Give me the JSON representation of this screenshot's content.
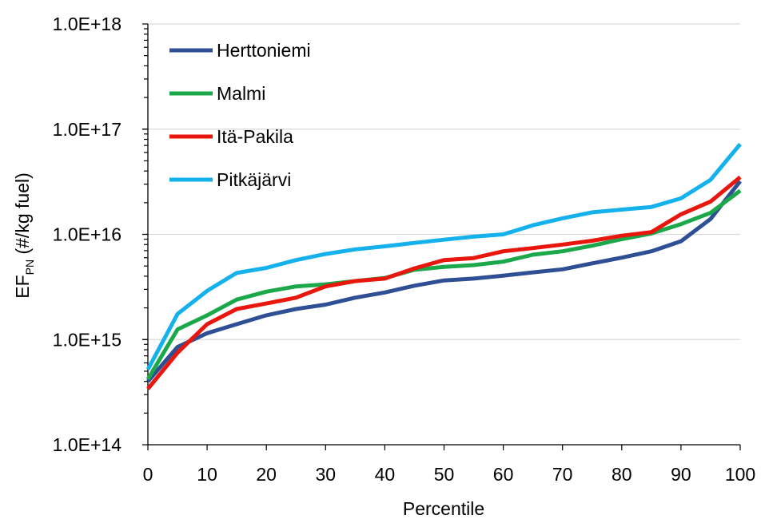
{
  "chart_data": {
    "type": "line",
    "xlabel": "Percentile",
    "ylabel_main": "EF",
    "ylabel_sub": "PN",
    "ylabel_rest": " (#/kg fuel)",
    "yscale": "log",
    "ylim": [
      100000000000000.0,
      1e+18
    ],
    "xlim": [
      0,
      100
    ],
    "y_ticks": [
      100000000000000.0,
      1000000000000000.0,
      1e+16,
      1e+17,
      1e+18
    ],
    "y_tick_labels": [
      "1.0E+14",
      "1.0E+15",
      "1.0E+16",
      "1.0E+17",
      "1.0E+18"
    ],
    "x_ticks": [
      0,
      10,
      20,
      30,
      40,
      50,
      60,
      70,
      80,
      90,
      100
    ],
    "x_tick_labels": [
      "0",
      "10",
      "20",
      "30",
      "40",
      "50",
      "60",
      "70",
      "80",
      "90",
      "100"
    ],
    "grid": "horizontal major",
    "legend_position": "top-left",
    "x": [
      0,
      5,
      10,
      15,
      20,
      25,
      30,
      35,
      40,
      45,
      50,
      55,
      60,
      65,
      70,
      75,
      80,
      85,
      90,
      95,
      100
    ],
    "series": [
      {
        "name": "Herttoniemi",
        "color": "#2F4F94",
        "values": [
          400000000000000.0,
          850000000000000.0,
          1150000000000000.0,
          1400000000000000.0,
          1700000000000000.0,
          1950000000000000.0,
          2150000000000000.0,
          2500000000000000.0,
          2800000000000000.0,
          3250000000000000.0,
          3650000000000000.0,
          3800000000000000.0,
          4050000000000000.0,
          4350000000000000.0,
          4650000000000000.0,
          5300000000000000.0,
          6000000000000000.0,
          6900000000000000.0,
          8600000000000000.0,
          1.4e+16,
          3.2e+16
        ]
      },
      {
        "name": "Malmi",
        "color": "#1BA84B",
        "values": [
          420000000000000.0,
          1250000000000000.0,
          1700000000000000.0,
          2400000000000000.0,
          2850000000000000.0,
          3200000000000000.0,
          3350000000000000.0,
          3600000000000000.0,
          3850000000000000.0,
          4600000000000000.0,
          4900000000000000.0,
          5100000000000000.0,
          5500000000000000.0,
          6400000000000000.0,
          6900000000000000.0,
          7800000000000000.0,
          9000000000000000.0,
          1.02e+16,
          1.25e+16,
          1.6e+16,
          2.6e+16
        ]
      },
      {
        "name": "Itä-Pakila",
        "color": "#E8160C",
        "values": [
          340000000000000.0,
          750000000000000.0,
          1400000000000000.0,
          1950000000000000.0,
          2200000000000000.0,
          2500000000000000.0,
          3200000000000000.0,
          3600000000000000.0,
          3800000000000000.0,
          4750000000000000.0,
          5700000000000000.0,
          5950000000000000.0,
          6900000000000000.0,
          7400000000000000.0,
          8000000000000000.0,
          8700000000000000.0,
          9700000000000000.0,
          1.05e+16,
          1.55e+16,
          2.05e+16,
          3.5e+16
        ]
      },
      {
        "name": "Pitkäjärvi",
        "color": "#15B1EC",
        "values": [
          520000000000000.0,
          1750000000000000.0,
          2900000000000000.0,
          4300000000000000.0,
          4800000000000000.0,
          5700000000000000.0,
          6500000000000000.0,
          7200000000000000.0,
          7700000000000000.0,
          8300000000000000.0,
          8900000000000000.0,
          9500000000000000.0,
          1e+16,
          1.22e+16,
          1.42e+16,
          1.62e+16,
          1.72e+16,
          1.82e+16,
          2.2e+16,
          3.3e+16,
          7.2e+16
        ]
      }
    ]
  }
}
